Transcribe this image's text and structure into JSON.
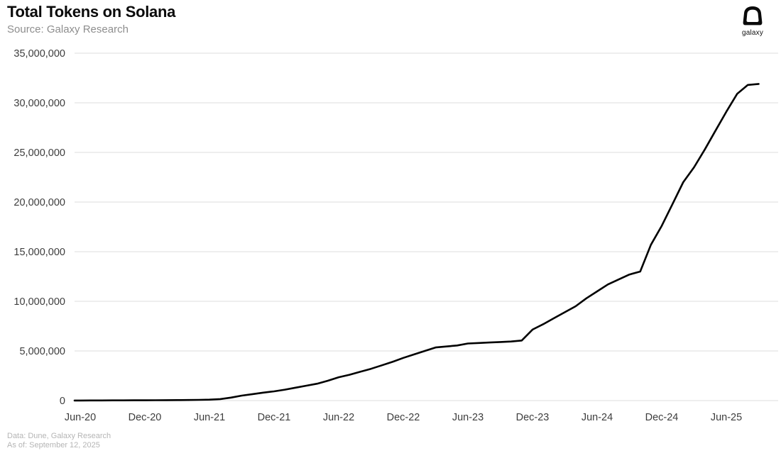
{
  "header": {
    "title": "Total Tokens on Solana",
    "source": "Source: Galaxy Research"
  },
  "logo": {
    "label": "galaxy"
  },
  "footer": {
    "line1": "Data: Dune, Galaxy Research",
    "line2": "As of: September 12, 2025"
  },
  "colors": {
    "line": "#000000",
    "grid": "#e3e3e3",
    "axis_label": "#3d3d3d",
    "subtitle": "#8e8e8e",
    "footer": "#b5b5b5",
    "background": "#ffffff"
  },
  "chart_data": {
    "type": "line",
    "title": "Total Tokens on Solana",
    "subtitle": "Source: Galaxy Research",
    "xlabel": "",
    "ylabel": "",
    "ylim": [
      0,
      35000000
    ],
    "y_tick_interval": 5000000,
    "y_ticks": [
      35000000,
      30000000,
      25000000,
      20000000,
      15000000,
      10000000,
      5000000,
      0
    ],
    "grid": "horizontal-only",
    "legend": "none",
    "x_ticks": [
      {
        "label": "Jun-20",
        "month_index": 0
      },
      {
        "label": "Dec-20",
        "month_index": 6
      },
      {
        "label": "Jun-21",
        "month_index": 12
      },
      {
        "label": "Dec-21",
        "month_index": 18
      },
      {
        "label": "Jun-22",
        "month_index": 24
      },
      {
        "label": "Dec-22",
        "month_index": 30
      },
      {
        "label": "Jun-23",
        "month_index": 36
      },
      {
        "label": "Dec-23",
        "month_index": 42
      },
      {
        "label": "Jun-24",
        "month_index": 48
      },
      {
        "label": "Dec-24",
        "month_index": 54
      },
      {
        "label": "Jun-25",
        "month_index": 60
      }
    ],
    "series": [
      {
        "name": "Total tokens on Solana",
        "color": "#000000",
        "frequency": "monthly",
        "months": [
          "Jun-20",
          "Jul-20",
          "Aug-20",
          "Sep-20",
          "Oct-20",
          "Nov-20",
          "Dec-20",
          "Jan-21",
          "Feb-21",
          "Mar-21",
          "Apr-21",
          "May-21",
          "Jun-21",
          "Jul-21",
          "Aug-21",
          "Sep-21",
          "Oct-21",
          "Nov-21",
          "Dec-21",
          "Jan-22",
          "Feb-22",
          "Mar-22",
          "Apr-22",
          "May-22",
          "Jun-22",
          "Jul-22",
          "Aug-22",
          "Sep-22",
          "Oct-22",
          "Nov-22",
          "Dec-22",
          "Jan-23",
          "Feb-23",
          "Mar-23",
          "Apr-23",
          "May-23",
          "Jun-23",
          "Jul-23",
          "Aug-23",
          "Sep-23",
          "Oct-23",
          "Nov-23",
          "Dec-23",
          "Jan-24",
          "Feb-24",
          "Mar-24",
          "Apr-24",
          "May-24",
          "Jun-24",
          "Jul-24",
          "Aug-24",
          "Sep-24",
          "Oct-24",
          "Nov-24",
          "Dec-24",
          "Jan-25",
          "Feb-25",
          "Mar-25",
          "Apr-25",
          "May-25",
          "Jun-25",
          "Jul-25",
          "Aug-25",
          "Sep-25"
        ],
        "values": [
          10000,
          12000,
          15000,
          18000,
          22000,
          26000,
          30000,
          35000,
          40000,
          50000,
          60000,
          70000,
          90000,
          150000,
          300000,
          500000,
          650000,
          800000,
          930000,
          1100000,
          1300000,
          1500000,
          1700000,
          2000000,
          2350000,
          2600000,
          2900000,
          3200000,
          3550000,
          3900000,
          4300000,
          4650000,
          5000000,
          5350000,
          5450000,
          5550000,
          5750000,
          5800000,
          5850000,
          5900000,
          5950000,
          6050000,
          7150000,
          7700000,
          8300000,
          8900000,
          9500000,
          10300000,
          11000000,
          11700000,
          12200000,
          12700000,
          13000000,
          15700000,
          17600000,
          19800000,
          22000000,
          23500000,
          25300000,
          27200000,
          29100000,
          30900000,
          31800000,
          31900000
        ]
      }
    ]
  }
}
